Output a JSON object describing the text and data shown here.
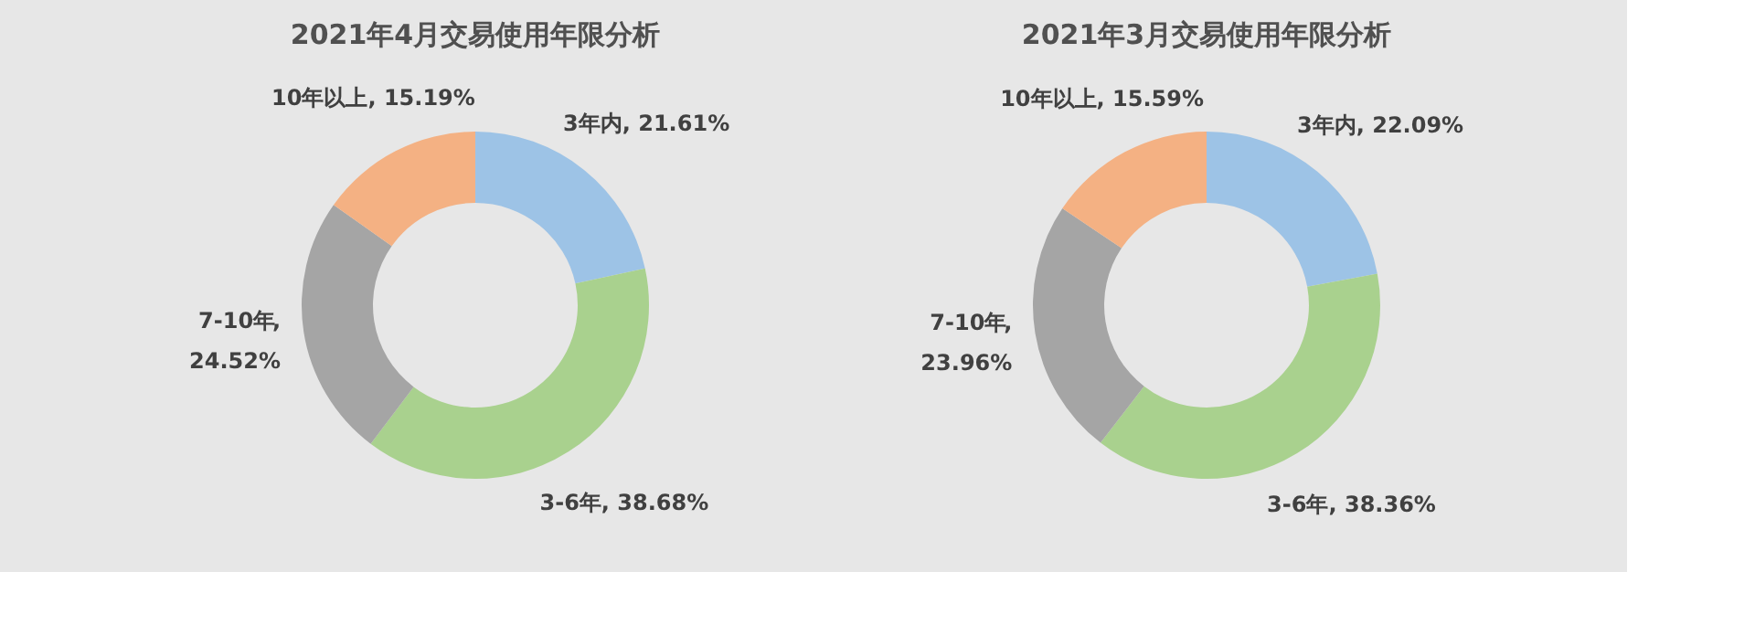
{
  "chart_data": [
    {
      "type": "donut",
      "title": "2021年4月交易使用年限分析",
      "categories": [
        "3年内",
        "3-6年",
        "7-10年",
        "10年以上"
      ],
      "values": [
        21.61,
        38.68,
        24.52,
        15.19
      ],
      "colors": [
        "#9dc3e6",
        "#a9d18e",
        "#a5a5a5",
        "#f4b183"
      ],
      "value_labels": [
        ", 21.61%",
        ", 38.68%",
        ", 24.52%",
        ", 15.19%"
      ],
      "legend": false
    },
    {
      "type": "donut",
      "title": "2021年3月交易使用年限分析",
      "categories": [
        "3年内",
        "3-6年",
        "7-10年",
        "10年以上"
      ],
      "values": [
        22.09,
        38.36,
        23.96,
        15.59
      ],
      "colors": [
        "#9dc3e6",
        "#a9d18e",
        "#a5a5a5",
        "#f4b183"
      ],
      "value_labels": [
        ", 22.09%",
        ", 38.36%",
        ", 23.96%",
        ", 15.59%"
      ],
      "legend": false
    }
  ]
}
